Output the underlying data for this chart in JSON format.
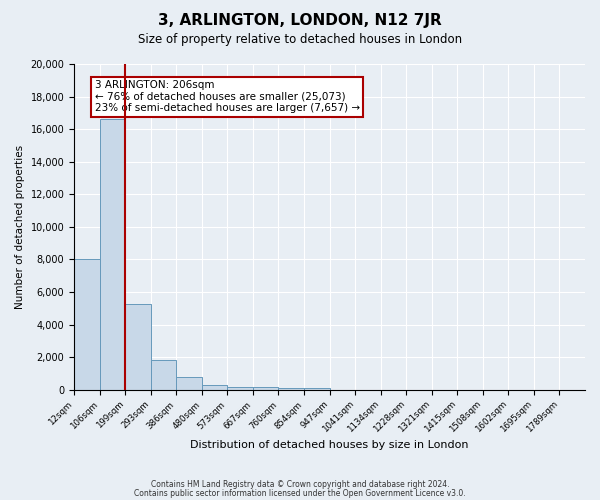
{
  "title": "3, ARLINGTON, LONDON, N12 7JR",
  "subtitle": "Size of property relative to detached houses in London",
  "xlabel": "Distribution of detached houses by size in London",
  "ylabel": "Number of detached properties",
  "bar_values": [
    8050,
    16600,
    5250,
    1800,
    800,
    300,
    200,
    150,
    120,
    100,
    0,
    0,
    0,
    0,
    0,
    0,
    0,
    0,
    0,
    0
  ],
  "bar_labels": [
    "12sqm",
    "106sqm",
    "199sqm",
    "293sqm",
    "386sqm",
    "480sqm",
    "573sqm",
    "667sqm",
    "760sqm",
    "854sqm",
    "947sqm",
    "1041sqm",
    "1134sqm",
    "1228sqm",
    "1321sqm",
    "1415sqm",
    "1508sqm",
    "1602sqm",
    "1695sqm",
    "1789sqm"
  ],
  "bar_color": "#c8d8e8",
  "bar_edge_color": "#6699bb",
  "vline_x": 2,
  "vline_color": "#aa0000",
  "ylim": [
    0,
    20000
  ],
  "yticks": [
    0,
    2000,
    4000,
    6000,
    8000,
    10000,
    12000,
    14000,
    16000,
    18000,
    20000
  ],
  "annotation_title": "3 ARLINGTON: 206sqm",
  "annotation_line1": "← 76% of detached houses are smaller (25,073)",
  "annotation_line2": "23% of semi-detached houses are larger (7,657) →",
  "annotation_box_color": "#ffffff",
  "annotation_box_edge": "#aa0000",
  "footer_line1": "Contains HM Land Registry data © Crown copyright and database right 2024.",
  "footer_line2": "Contains public sector information licensed under the Open Government Licence v3.0.",
  "background_color": "#e8eef4",
  "plot_background": "#e8eef4",
  "grid_color": "#ffffff",
  "n_bars": 20
}
